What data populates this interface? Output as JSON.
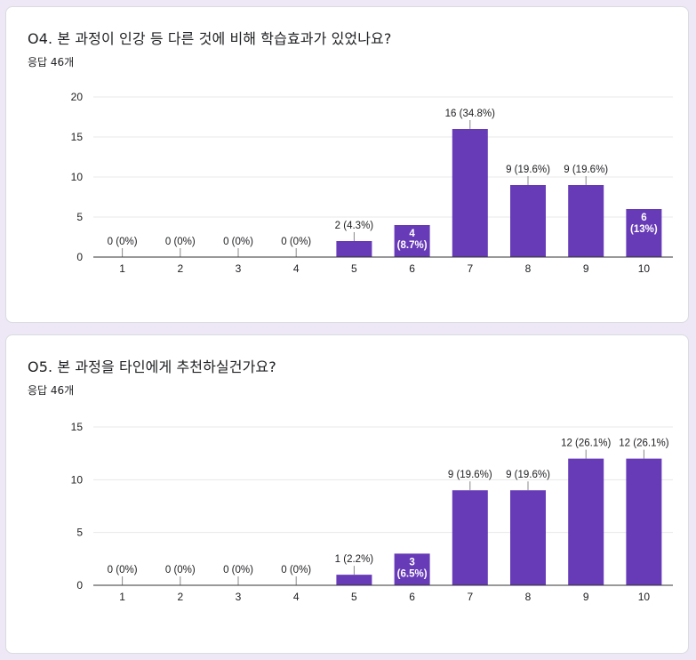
{
  "colors": {
    "bar": "#673ab7",
    "grid": "#e8e8e8",
    "axis": "#333333",
    "text": "#202124",
    "inside_label": "#ffffff"
  },
  "questions": [
    {
      "title": "O4. 본 과정이 인강 등 다른 것에 비해 학습효과가 있었나요?",
      "response_count": "응답 46개",
      "chart_data": {
        "type": "bar",
        "categories": [
          "1",
          "2",
          "3",
          "4",
          "5",
          "6",
          "7",
          "8",
          "9",
          "10"
        ],
        "values": [
          0,
          0,
          0,
          0,
          2,
          4,
          16,
          9,
          9,
          6
        ],
        "data_labels": [
          "0 (0%)",
          "0 (0%)",
          "0 (0%)",
          "0 (0%)",
          "2 (4.3%)",
          "4\n(8.7%)",
          "16 (34.8%)",
          "9 (19.6%)",
          "9 (19.6%)",
          "6\n(13%)"
        ],
        "ylim": [
          0,
          20
        ],
        "yticks": [
          0,
          5,
          10,
          15,
          20
        ],
        "title": "",
        "xlabel": "",
        "ylabel": "",
        "grid": true
      }
    },
    {
      "title": "O5. 본 과정을 타인에게 추천하실건가요?",
      "response_count": "응답 46개",
      "chart_data": {
        "type": "bar",
        "categories": [
          "1",
          "2",
          "3",
          "4",
          "5",
          "6",
          "7",
          "8",
          "9",
          "10"
        ],
        "values": [
          0,
          0,
          0,
          0,
          1,
          3,
          9,
          9,
          12,
          12
        ],
        "data_labels": [
          "0 (0%)",
          "0 (0%)",
          "0 (0%)",
          "0 (0%)",
          "1 (2.2%)",
          "3\n(6.5%)",
          "9 (19.6%)",
          "9 (19.6%)",
          "12 (26.1%)",
          "12 (26.1%)"
        ],
        "ylim": [
          0,
          15
        ],
        "yticks": [
          0,
          5,
          10,
          15
        ],
        "title": "",
        "xlabel": "",
        "ylabel": "",
        "grid": true
      }
    }
  ]
}
